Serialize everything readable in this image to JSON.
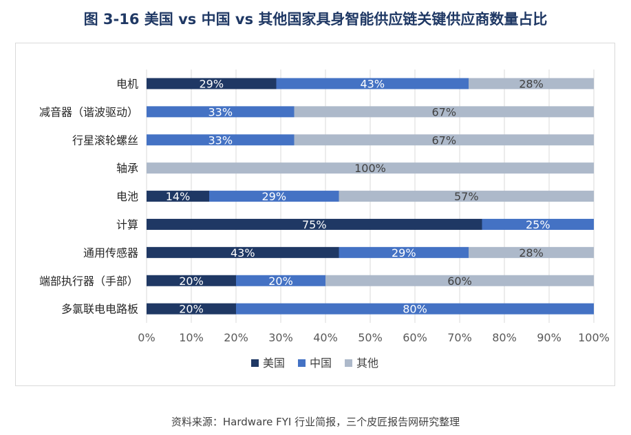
{
  "title": "图  3-16  美国 vs 中国 vs 其他国家具身智能供应链关键供应商数量占比",
  "source": "资料来源：Hardware FYI  行业简报，三个皮匠报告网研究整理",
  "colors": {
    "美国": "#1f3864",
    "中国": "#4472c4",
    "其他": "#adb9ca"
  },
  "chart_data": {
    "type": "bar",
    "orientation": "horizontal",
    "stacked": "percent",
    "categories": [
      "电机",
      "减音器（谐波驱动）",
      "行星滚轮螺丝",
      "轴承",
      "电池",
      "计算",
      "通用传感器",
      "端部执行器（手部）",
      "多氯联电电路板"
    ],
    "series": [
      {
        "name": "美国",
        "values": [
          29,
          0,
          0,
          0,
          14,
          75,
          43,
          20,
          20
        ]
      },
      {
        "name": "中国",
        "values": [
          43,
          33,
          33,
          0,
          29,
          25,
          29,
          20,
          80
        ]
      },
      {
        "name": "其他",
        "values": [
          28,
          67,
          67,
          100,
          57,
          0,
          28,
          60,
          0
        ]
      }
    ],
    "data_labels": [
      [
        "29%",
        "",
        "",
        "",
        "14%",
        "75%",
        "43%",
        "20%",
        "20%"
      ],
      [
        "43%",
        "33%",
        "33%",
        "",
        "29%",
        "25%",
        "29%",
        "20%",
        "80%"
      ],
      [
        "28%",
        "67%",
        "67%",
        "100%",
        "57%",
        "",
        "28%",
        "60%",
        ""
      ]
    ],
    "xlim": [
      0,
      100
    ],
    "xticks": [
      "0%",
      "10%",
      "20%",
      "30%",
      "40%",
      "50%",
      "60%",
      "70%",
      "80%",
      "90%",
      "100%"
    ],
    "grid": "vertical",
    "legend": "bottom",
    "xlabel": "",
    "ylabel": ""
  }
}
